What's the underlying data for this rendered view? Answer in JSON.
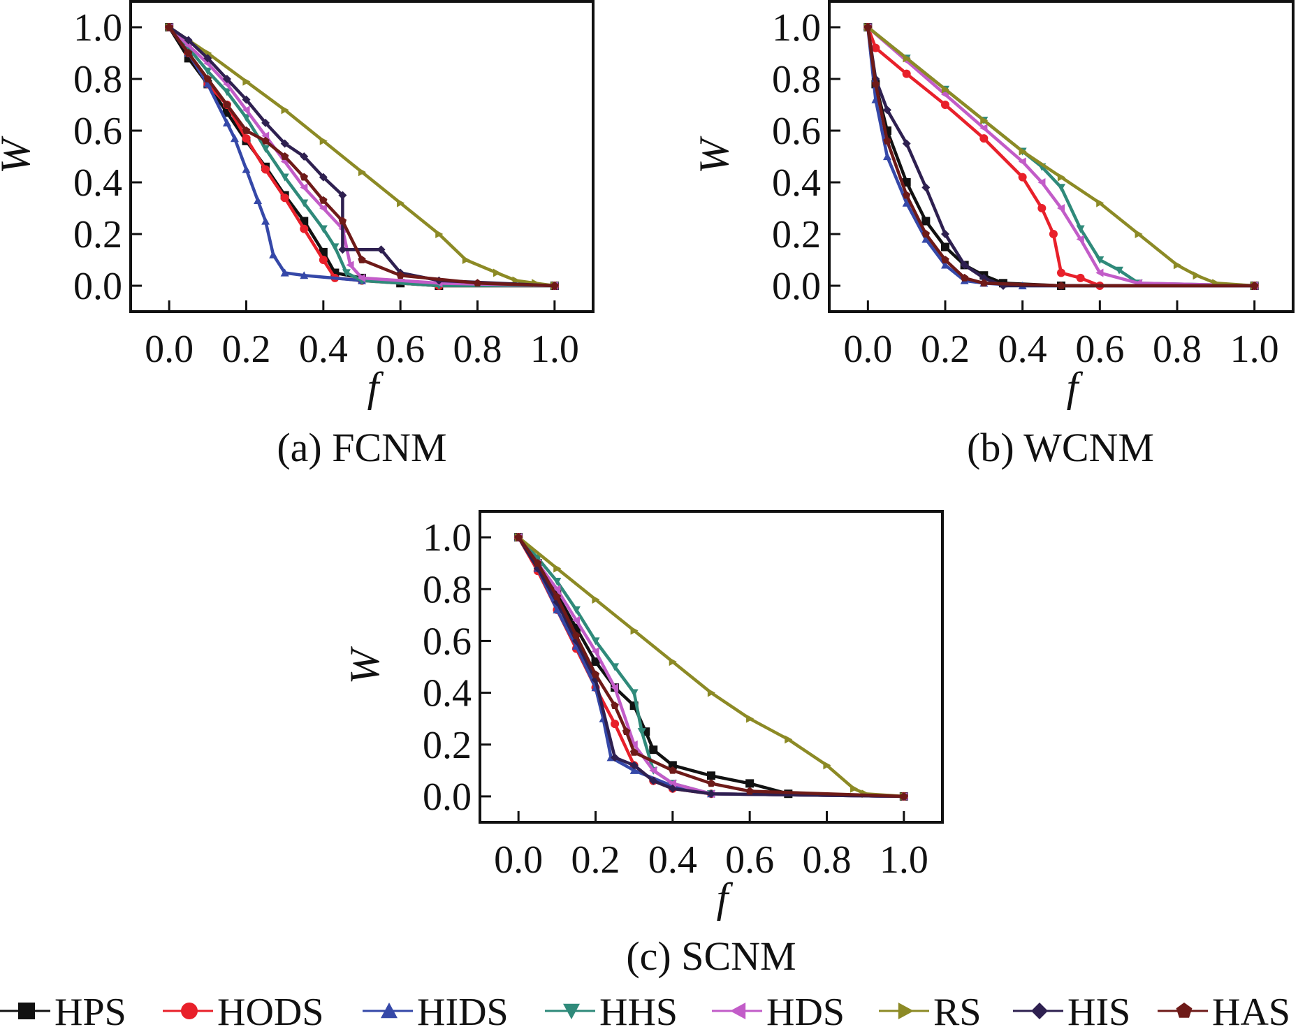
{
  "legend": [
    {
      "name": "HPS",
      "color": "#111111",
      "marker": "square"
    },
    {
      "name": "HODS",
      "color": "#e8202a",
      "marker": "circle"
    },
    {
      "name": "HIDS",
      "color": "#3548a8",
      "marker": "triangle-up"
    },
    {
      "name": "HHS",
      "color": "#2f8a7a",
      "marker": "triangle-down"
    },
    {
      "name": "HDS",
      "color": "#c25cc8",
      "marker": "triangle-left"
    },
    {
      "name": "RS",
      "color": "#8c8a25",
      "marker": "triangle-right"
    },
    {
      "name": "HIS",
      "color": "#2e2050",
      "marker": "diamond"
    },
    {
      "name": "HAS",
      "color": "#6e1a18",
      "marker": "pentagon"
    }
  ],
  "chart_data": [
    {
      "type": "line",
      "caption": "(a) FCNM",
      "xlabel": "f",
      "ylabel": "W",
      "xlim": [
        -0.1,
        1.1
      ],
      "ylim": [
        -0.1,
        1.1
      ],
      "xticks": [
        "0.0",
        "0.2",
        "0.4",
        "0.6",
        "0.8",
        "1.0"
      ],
      "yticks": [
        "0.0",
        "0.2",
        "0.4",
        "0.6",
        "0.8",
        "1.0"
      ],
      "series": [
        {
          "name": "HPS",
          "x": [
            0,
            0.05,
            0.1,
            0.15,
            0.2,
            0.25,
            0.3,
            0.35,
            0.4,
            0.43,
            0.5,
            0.6,
            0.7,
            1.0
          ],
          "y": [
            1.0,
            0.88,
            0.78,
            0.67,
            0.56,
            0.46,
            0.35,
            0.25,
            0.13,
            0.05,
            0.03,
            0.01,
            0.0,
            0.0
          ]
        },
        {
          "name": "HODS",
          "x": [
            0,
            0.05,
            0.1,
            0.15,
            0.2,
            0.25,
            0.3,
            0.35,
            0.4,
            0.43,
            0.5,
            0.7,
            1.0
          ],
          "y": [
            1.0,
            0.9,
            0.78,
            0.7,
            0.57,
            0.45,
            0.34,
            0.22,
            0.1,
            0.03,
            0.02,
            0.0,
            0.0
          ]
        },
        {
          "name": "HIDS",
          "x": [
            0,
            0.05,
            0.1,
            0.15,
            0.17,
            0.2,
            0.23,
            0.25,
            0.27,
            0.3,
            0.35,
            0.5,
            0.7,
            1.0
          ],
          "y": [
            1.0,
            0.9,
            0.78,
            0.63,
            0.57,
            0.45,
            0.33,
            0.25,
            0.12,
            0.05,
            0.04,
            0.02,
            0.01,
            0.0
          ]
        },
        {
          "name": "HHS",
          "x": [
            0,
            0.05,
            0.1,
            0.15,
            0.2,
            0.25,
            0.3,
            0.35,
            0.4,
            0.43,
            0.46,
            0.5,
            0.7,
            1.0
          ],
          "y": [
            1.0,
            0.92,
            0.83,
            0.75,
            0.65,
            0.53,
            0.42,
            0.32,
            0.22,
            0.15,
            0.05,
            0.02,
            0.0,
            0.0
          ]
        },
        {
          "name": "HDS",
          "x": [
            0,
            0.05,
            0.1,
            0.15,
            0.2,
            0.25,
            0.3,
            0.35,
            0.4,
            0.45,
            0.47,
            0.5,
            0.7,
            1.0
          ],
          "y": [
            1.0,
            0.93,
            0.86,
            0.78,
            0.68,
            0.58,
            0.48,
            0.38,
            0.3,
            0.22,
            0.08,
            0.03,
            0.01,
            0.0
          ]
        },
        {
          "name": "RS",
          "x": [
            0,
            0.1,
            0.2,
            0.3,
            0.4,
            0.5,
            0.6,
            0.7,
            0.77,
            0.85,
            0.9,
            0.95,
            1.0
          ],
          "y": [
            1.0,
            0.9,
            0.79,
            0.68,
            0.56,
            0.44,
            0.32,
            0.2,
            0.1,
            0.05,
            0.02,
            0.01,
            0.0
          ]
        },
        {
          "name": "HIS",
          "x": [
            0,
            0.05,
            0.1,
            0.15,
            0.2,
            0.25,
            0.3,
            0.35,
            0.4,
            0.45,
            0.45,
            0.55,
            0.6,
            0.7,
            1.0
          ],
          "y": [
            1.0,
            0.95,
            0.88,
            0.8,
            0.72,
            0.63,
            0.55,
            0.5,
            0.42,
            0.35,
            0.14,
            0.14,
            0.05,
            0.02,
            0.0
          ]
        },
        {
          "name": "HAS",
          "x": [
            0,
            0.05,
            0.1,
            0.15,
            0.2,
            0.25,
            0.3,
            0.35,
            0.4,
            0.45,
            0.5,
            0.6,
            0.8,
            1.0
          ],
          "y": [
            1.0,
            0.9,
            0.8,
            0.7,
            0.6,
            0.56,
            0.5,
            0.42,
            0.33,
            0.25,
            0.1,
            0.04,
            0.01,
            0.0
          ]
        }
      ]
    },
    {
      "type": "line",
      "caption": "(b) WCNM",
      "xlabel": "f",
      "ylabel": "W",
      "xlim": [
        -0.1,
        1.1
      ],
      "ylim": [
        -0.1,
        1.1
      ],
      "xticks": [
        "0.0",
        "0.2",
        "0.4",
        "0.6",
        "0.8",
        "1.0"
      ],
      "yticks": [
        "0.0",
        "0.2",
        "0.4",
        "0.6",
        "0.8",
        "1.0"
      ],
      "series": [
        {
          "name": "HPS",
          "x": [
            0,
            0.02,
            0.05,
            0.1,
            0.15,
            0.2,
            0.25,
            0.3,
            0.35,
            0.5,
            1.0
          ],
          "y": [
            1.0,
            0.78,
            0.6,
            0.4,
            0.25,
            0.15,
            0.08,
            0.04,
            0.01,
            0.0,
            0.0
          ]
        },
        {
          "name": "HODS",
          "x": [
            0,
            0.02,
            0.1,
            0.2,
            0.3,
            0.4,
            0.45,
            0.48,
            0.5,
            0.55,
            0.6,
            1.0
          ],
          "y": [
            1.0,
            0.92,
            0.82,
            0.7,
            0.57,
            0.42,
            0.3,
            0.2,
            0.05,
            0.03,
            0.0,
            0.0
          ]
        },
        {
          "name": "HIDS",
          "x": [
            0,
            0.02,
            0.05,
            0.1,
            0.15,
            0.2,
            0.25,
            0.3,
            0.4,
            1.0
          ],
          "y": [
            1.0,
            0.72,
            0.5,
            0.32,
            0.18,
            0.08,
            0.02,
            0.01,
            0.0,
            0.0
          ]
        },
        {
          "name": "HHS",
          "x": [
            0,
            0.1,
            0.2,
            0.3,
            0.4,
            0.45,
            0.5,
            0.55,
            0.6,
            0.65,
            0.7,
            1.0
          ],
          "y": [
            1.0,
            0.88,
            0.76,
            0.64,
            0.52,
            0.46,
            0.38,
            0.22,
            0.1,
            0.06,
            0.01,
            0.0
          ]
        },
        {
          "name": "HDS",
          "x": [
            0,
            0.1,
            0.2,
            0.3,
            0.4,
            0.45,
            0.5,
            0.55,
            0.6,
            0.7,
            1.0
          ],
          "y": [
            1.0,
            0.87,
            0.74,
            0.61,
            0.48,
            0.4,
            0.3,
            0.18,
            0.05,
            0.01,
            0.0
          ]
        },
        {
          "name": "RS",
          "x": [
            0,
            0.1,
            0.2,
            0.3,
            0.4,
            0.5,
            0.6,
            0.7,
            0.8,
            0.85,
            0.9,
            1.0
          ],
          "y": [
            1.0,
            0.88,
            0.76,
            0.64,
            0.52,
            0.42,
            0.32,
            0.2,
            0.08,
            0.04,
            0.01,
            0.0
          ]
        },
        {
          "name": "HIS",
          "x": [
            0,
            0.02,
            0.05,
            0.1,
            0.15,
            0.2,
            0.25,
            0.3,
            0.35,
            0.5,
            1.0
          ],
          "y": [
            1.0,
            0.8,
            0.68,
            0.55,
            0.38,
            0.2,
            0.08,
            0.03,
            0.0,
            0.0,
            0.0
          ]
        },
        {
          "name": "HAS",
          "x": [
            0,
            0.02,
            0.05,
            0.1,
            0.15,
            0.2,
            0.25,
            0.3,
            0.5,
            1.0
          ],
          "y": [
            1.0,
            0.78,
            0.56,
            0.35,
            0.2,
            0.1,
            0.03,
            0.01,
            0.0,
            0.0
          ]
        }
      ]
    },
    {
      "type": "line",
      "caption": "(c) SCNM",
      "xlabel": "f",
      "ylabel": "W",
      "xlim": [
        -0.1,
        1.1
      ],
      "ylim": [
        -0.1,
        1.1
      ],
      "xticks": [
        "0.0",
        "0.2",
        "0.4",
        "0.6",
        "0.8",
        "1.0"
      ],
      "yticks": [
        "0.0",
        "0.2",
        "0.4",
        "0.6",
        "0.8",
        "1.0"
      ],
      "series": [
        {
          "name": "HPS",
          "x": [
            0,
            0.05,
            0.1,
            0.15,
            0.2,
            0.25,
            0.3,
            0.33,
            0.35,
            0.4,
            0.5,
            0.6,
            0.7,
            1.0
          ],
          "y": [
            1.0,
            0.9,
            0.78,
            0.65,
            0.52,
            0.42,
            0.35,
            0.25,
            0.18,
            0.12,
            0.08,
            0.05,
            0.01,
            0.0
          ]
        },
        {
          "name": "HODS",
          "x": [
            0,
            0.05,
            0.1,
            0.15,
            0.2,
            0.25,
            0.3,
            0.35,
            0.4,
            0.5,
            1.0
          ],
          "y": [
            1.0,
            0.87,
            0.72,
            0.57,
            0.42,
            0.28,
            0.12,
            0.06,
            0.03,
            0.01,
            0.0
          ]
        },
        {
          "name": "HIDS",
          "x": [
            0,
            0.05,
            0.1,
            0.15,
            0.2,
            0.22,
            0.24,
            0.3,
            0.4,
            0.5,
            1.0
          ],
          "y": [
            1.0,
            0.88,
            0.72,
            0.58,
            0.42,
            0.3,
            0.15,
            0.1,
            0.04,
            0.01,
            0.0
          ]
        },
        {
          "name": "HHS",
          "x": [
            0,
            0.05,
            0.1,
            0.15,
            0.2,
            0.25,
            0.3,
            0.32,
            0.35,
            0.4,
            0.5,
            1.0
          ],
          "y": [
            1.0,
            0.92,
            0.83,
            0.72,
            0.6,
            0.5,
            0.4,
            0.25,
            0.1,
            0.05,
            0.01,
            0.0
          ]
        },
        {
          "name": "HDS",
          "x": [
            0,
            0.05,
            0.1,
            0.15,
            0.2,
            0.25,
            0.3,
            0.35,
            0.4,
            0.5,
            1.0
          ],
          "y": [
            1.0,
            0.9,
            0.8,
            0.68,
            0.56,
            0.42,
            0.2,
            0.1,
            0.05,
            0.01,
            0.0
          ]
        },
        {
          "name": "RS",
          "x": [
            0,
            0.1,
            0.2,
            0.3,
            0.4,
            0.5,
            0.6,
            0.7,
            0.8,
            0.87,
            0.9,
            1.0
          ],
          "y": [
            1.0,
            0.88,
            0.76,
            0.64,
            0.52,
            0.4,
            0.3,
            0.22,
            0.12,
            0.03,
            0.01,
            0.0
          ]
        },
        {
          "name": "HIS",
          "x": [
            0,
            0.05,
            0.1,
            0.15,
            0.2,
            0.25,
            0.3,
            0.35,
            0.4,
            0.5,
            1.0
          ],
          "y": [
            1.0,
            0.88,
            0.75,
            0.6,
            0.45,
            0.15,
            0.12,
            0.06,
            0.03,
            0.01,
            0.0
          ]
        },
        {
          "name": "HAS",
          "x": [
            0,
            0.05,
            0.1,
            0.15,
            0.2,
            0.25,
            0.28,
            0.3,
            0.4,
            0.5,
            0.6,
            1.0
          ],
          "y": [
            1.0,
            0.9,
            0.77,
            0.62,
            0.47,
            0.35,
            0.25,
            0.17,
            0.1,
            0.05,
            0.02,
            0.0
          ]
        }
      ]
    }
  ]
}
